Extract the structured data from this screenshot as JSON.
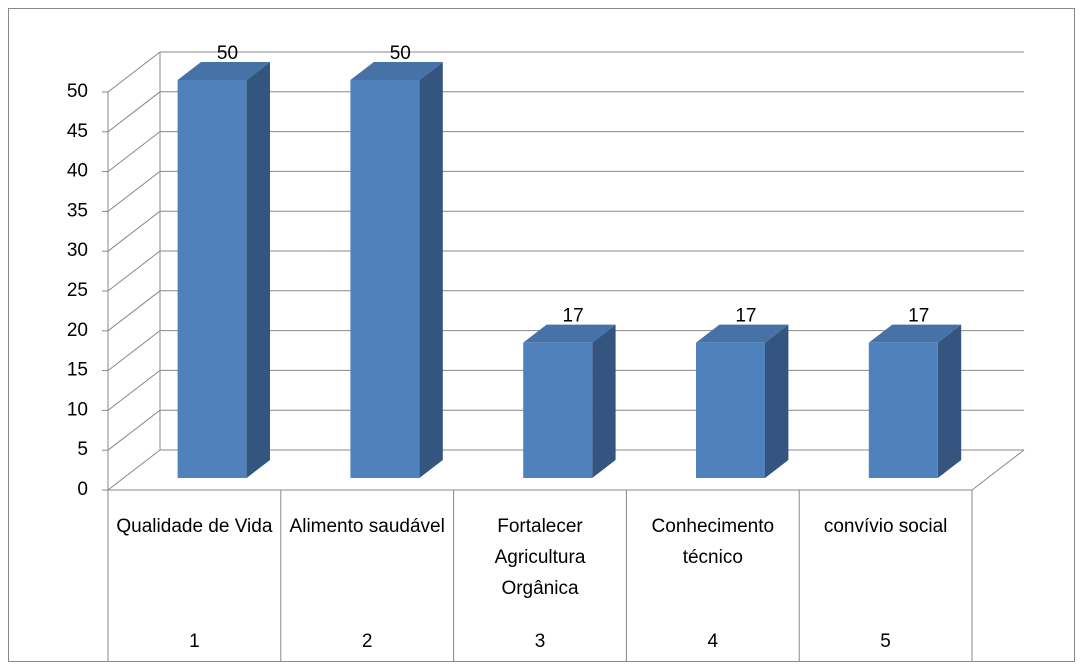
{
  "chart_data": {
    "type": "bar3d",
    "categories": [
      "Qualidade de Vida",
      "Alimento saudável",
      "Fortalecer Agricultura Orgânica",
      "Conhecimento técnico",
      "convívio social"
    ],
    "category_numbers": [
      "1",
      "2",
      "3",
      "4",
      "5"
    ],
    "values": [
      50,
      50,
      17,
      17,
      17
    ],
    "color": "#4f81bd",
    "ylim": [
      0,
      50
    ],
    "yticks": [
      0,
      5,
      10,
      15,
      20,
      25,
      30,
      35,
      40,
      45,
      50
    ],
    "grid": true
  }
}
